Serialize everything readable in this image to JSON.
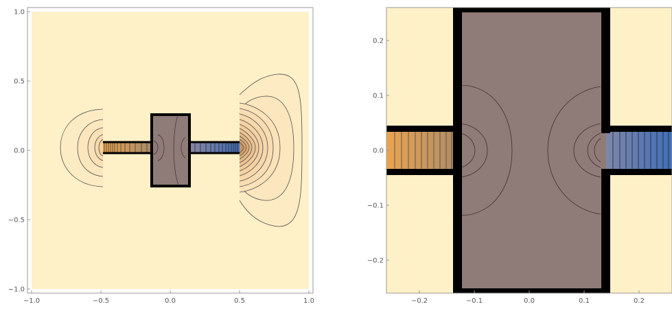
{
  "chart_data": [
    {
      "type": "contour",
      "xlim": [
        -1.0,
        1.0
      ],
      "ylim": [
        -1.0,
        1.0
      ],
      "x_ticks": [
        -1.0,
        -0.5,
        0.0,
        0.5,
        1.0
      ],
      "y_ticks": [
        -1.0,
        -0.5,
        0.0,
        0.5,
        1.0
      ],
      "x_tick_labels": [
        "−1.0",
        "−0.5",
        "0.0",
        "0.5",
        "1.0"
      ],
      "y_tick_labels": [
        "−1.0",
        "−0.5",
        "0.0",
        "0.5",
        "1.0"
      ],
      "title": "",
      "xlabel": "",
      "ylabel": "",
      "grid": false,
      "colors": {
        "background": "#fef1c8",
        "center_box": "#8f7b77",
        "wire_left": "#e0a050",
        "wire_right": "#4a73b0",
        "outline": "#000000",
        "contour": "#555555"
      },
      "regions": {
        "center_box": {
          "x": [
            -0.13,
            0.13
          ],
          "y": [
            -0.26,
            0.26
          ]
        },
        "wire_left": {
          "x": [
            -0.5,
            -0.13
          ],
          "y": [
            -0.04,
            0.04
          ]
        },
        "wire_right": {
          "x": [
            0.13,
            0.5
          ],
          "y": [
            -0.04,
            0.04
          ]
        }
      }
    },
    {
      "type": "contour",
      "xlim": [
        -0.26,
        0.26
      ],
      "ylim": [
        -0.26,
        0.26
      ],
      "x_ticks": [
        -0.2,
        -0.1,
        0.0,
        0.1,
        0.2
      ],
      "y_ticks": [
        -0.2,
        -0.1,
        0.0,
        0.1,
        0.2
      ],
      "x_tick_labels": [
        "−0.2",
        "−0.1",
        "0.0",
        "0.1",
        "0.2"
      ],
      "y_tick_labels": [
        "−0.2",
        "−0.1",
        "0.0",
        "0.1",
        "0.2"
      ],
      "title": "",
      "xlabel": "",
      "ylabel": "",
      "grid": false,
      "colors": {
        "background": "#fef1c8",
        "center_box": "#8f7b77",
        "wire_left": "#e0a050",
        "wire_right": "#4a73b0",
        "outline": "#000000",
        "contour": "#555555"
      },
      "regions": {
        "center_box": {
          "x": [
            -0.13,
            0.13
          ],
          "y": [
            -0.26,
            0.26
          ]
        },
        "wire_left": {
          "x": [
            -0.26,
            -0.13
          ],
          "y": [
            -0.04,
            0.04
          ]
        },
        "wire_right": {
          "x": [
            0.13,
            0.26
          ],
          "y": [
            -0.04,
            0.04
          ]
        }
      }
    }
  ]
}
